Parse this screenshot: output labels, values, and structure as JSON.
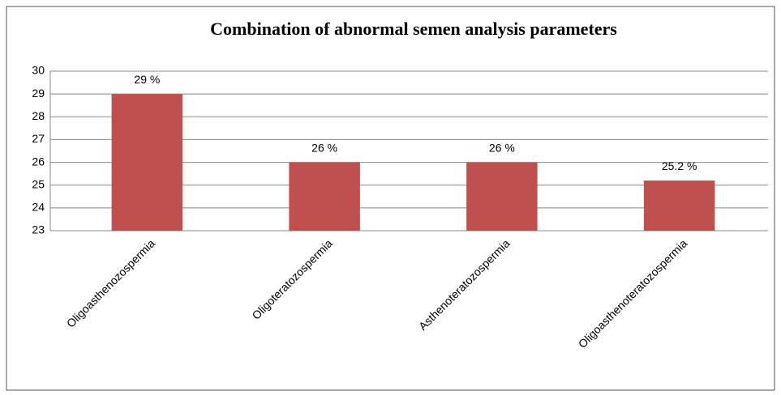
{
  "chart_data": {
    "type": "bar",
    "title": "Combination of abnormal semen analysis parameters",
    "categories": [
      "Oligoasthenozospermia",
      "Oligoteratozospermia",
      "Asthenoteratozospermia",
      "Oligoasthenoteratozospermia"
    ],
    "values": [
      29,
      26,
      26,
      25.2
    ],
    "value_labels": [
      "29 %",
      "26 %",
      "26 %",
      "25.2 %"
    ],
    "color": "#c0504d",
    "ylim": [
      23,
      30
    ],
    "yticks": [
      23,
      24,
      25,
      26,
      27,
      28,
      29,
      30
    ],
    "grid": true
  }
}
